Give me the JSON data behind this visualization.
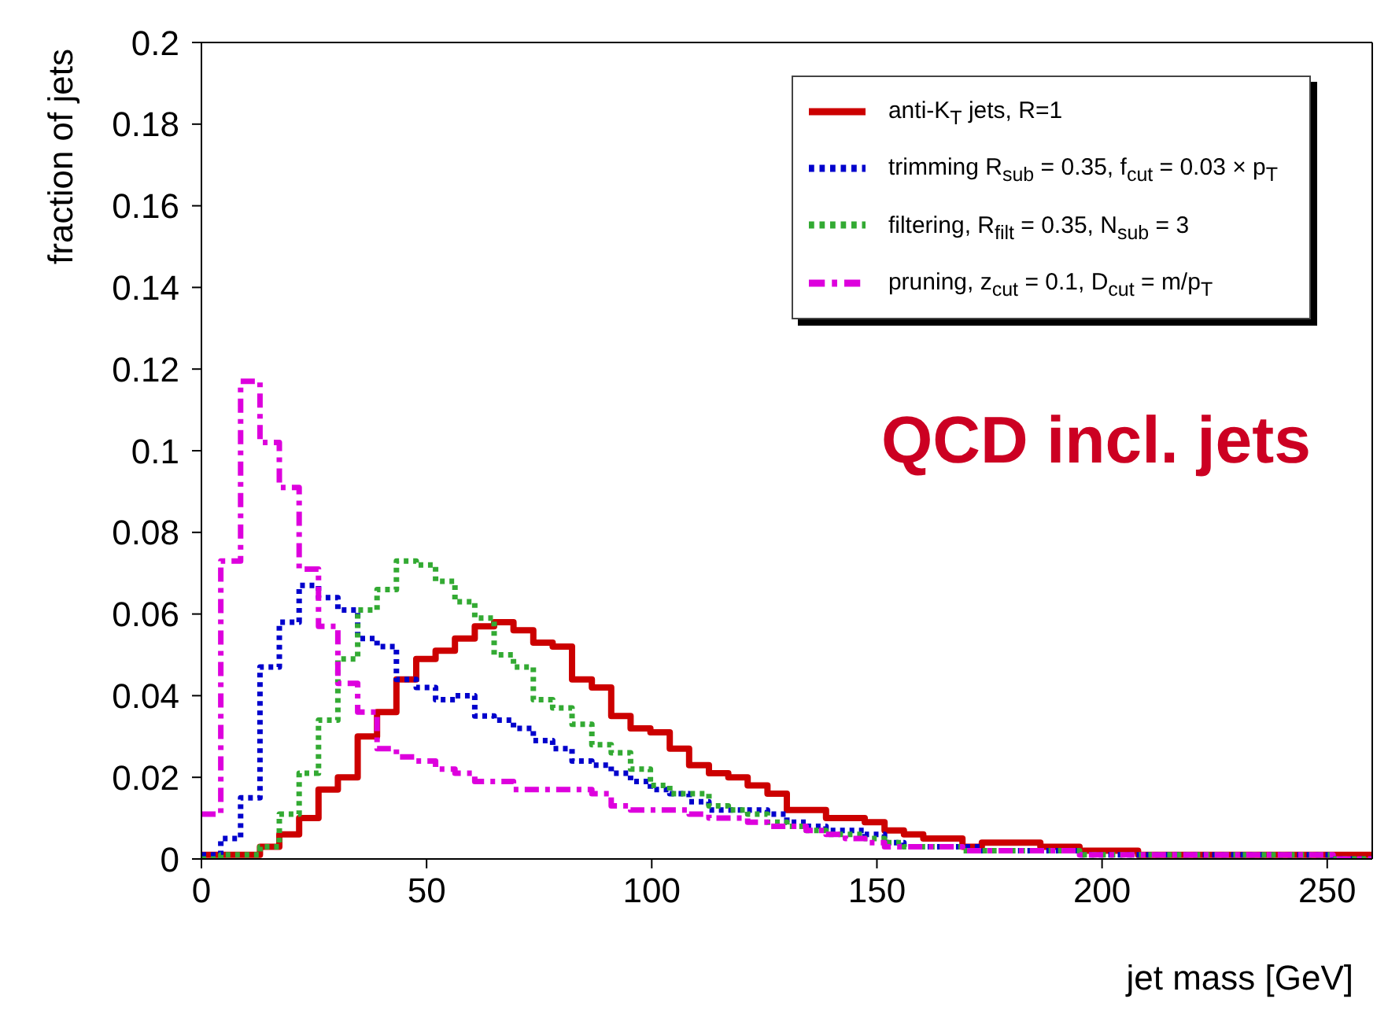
{
  "chart_data": {
    "type": "histogram",
    "xlabel": "jet mass [GeV]",
    "ylabel": "fraction of jets",
    "annotations": [
      "QCD incl. jets"
    ],
    "bins": [
      0,
      4.3,
      8.7,
      13,
      17.3,
      21.7,
      26,
      30.3,
      34.7,
      39,
      43.3,
      47.7,
      52,
      56.3,
      60.7,
      65,
      69.3,
      73.7,
      78,
      82.3,
      86.7,
      91,
      95.3,
      99.7,
      104,
      108.3,
      112.7,
      117,
      121.3,
      125.7,
      130,
      134.3,
      138.7,
      143,
      147.3,
      151.7,
      156,
      160.3,
      164.7,
      169,
      173.3,
      177.7,
      182,
      186.3,
      190.7,
      195,
      199.3,
      203.7,
      208,
      212.3,
      216.7,
      221,
      225.3,
      229.7,
      234,
      238.3,
      242.7,
      247,
      251.3,
      255.7,
      260
    ],
    "series": [
      {
        "name": "anti-K$_{T}$ jets, R=1",
        "color": "#cc0000",
        "line_style": "solid",
        "values": [
          0.001,
          0.001,
          0.001,
          0.003,
          0.006,
          0.01,
          0.017,
          0.02,
          0.03,
          0.036,
          0.044,
          0.049,
          0.051,
          0.054,
          0.057,
          0.058,
          0.056,
          0.053,
          0.052,
          0.044,
          0.042,
          0.035,
          0.032,
          0.031,
          0.027,
          0.023,
          0.021,
          0.02,
          0.018,
          0.016,
          0.012,
          0.012,
          0.01,
          0.01,
          0.009,
          0.007,
          0.006,
          0.005,
          0.005,
          0.003,
          0.004,
          0.004,
          0.004,
          0.003,
          0.003,
          0.002,
          0.002,
          0.002,
          0.001,
          0.001,
          0.001,
          0.001,
          0.001,
          0.001,
          0.001,
          0.001,
          0.001,
          0.001,
          0.001,
          0.001
        ]
      },
      {
        "name": "trimming R$_{sub}$ = 0.35, f$_{cut}$ = 0.03 × p$_{T}$",
        "color": "#0000cc",
        "line_style": "dotted",
        "values": [
          0.001,
          0.005,
          0.015,
          0.047,
          0.058,
          0.067,
          0.064,
          0.061,
          0.054,
          0.052,
          0.044,
          0.042,
          0.039,
          0.04,
          0.035,
          0.034,
          0.032,
          0.029,
          0.027,
          0.024,
          0.023,
          0.021,
          0.019,
          0.017,
          0.016,
          0.014,
          0.012,
          0.012,
          0.012,
          0.011,
          0.009,
          0.008,
          0.007,
          0.007,
          0.006,
          0.004,
          0.003,
          0.003,
          0.003,
          0.003,
          0.002,
          0.002,
          0.002,
          0.002,
          0.002,
          0.001,
          0.001,
          0.001,
          0.001,
          0.001,
          0.001,
          0.001,
          0.001,
          0.001,
          0.001,
          0.001,
          0.001,
          0.001,
          0.0,
          0.0
        ]
      },
      {
        "name": "filtering, R$_{filt}$ = 0.35, N$_{sub}$ = 3",
        "color": "#33aa33",
        "line_style": "dotted",
        "values": [
          0.0,
          0.001,
          0.001,
          0.003,
          0.011,
          0.021,
          0.034,
          0.049,
          0.061,
          0.066,
          0.073,
          0.072,
          0.068,
          0.063,
          0.059,
          0.05,
          0.047,
          0.039,
          0.037,
          0.033,
          0.028,
          0.026,
          0.022,
          0.018,
          0.016,
          0.016,
          0.013,
          0.012,
          0.011,
          0.009,
          0.008,
          0.007,
          0.006,
          0.006,
          0.005,
          0.004,
          0.003,
          0.003,
          0.003,
          0.002,
          0.002,
          0.002,
          0.002,
          0.002,
          0.002,
          0.001,
          0.001,
          0.001,
          0.001,
          0.001,
          0.001,
          0.001,
          0.001,
          0.001,
          0.001,
          0.001,
          0.001,
          0.001,
          0.0,
          0.0
        ]
      },
      {
        "name": "pruning, z$_{cut}$ = 0.1, D$_{cut}$ = m/p$_{T}$",
        "color": "#dd00dd",
        "line_style": "dashed",
        "values": [
          0.011,
          0.073,
          0.117,
          0.102,
          0.091,
          0.071,
          0.057,
          0.043,
          0.036,
          0.027,
          0.025,
          0.024,
          0.022,
          0.021,
          0.019,
          0.019,
          0.017,
          0.017,
          0.017,
          0.017,
          0.016,
          0.013,
          0.012,
          0.012,
          0.012,
          0.011,
          0.01,
          0.01,
          0.009,
          0.008,
          0.008,
          0.007,
          0.006,
          0.005,
          0.004,
          0.003,
          0.003,
          0.003,
          0.003,
          0.002,
          0.002,
          0.002,
          0.002,
          0.002,
          0.002,
          0.001,
          0.001,
          0.001,
          0.001,
          0.001,
          0.001,
          0.001,
          0.001,
          0.001,
          0.001,
          0.001,
          0.001,
          0.001,
          0.0,
          0.0
        ]
      }
    ],
    "xlim": [
      0,
      260
    ],
    "xticks": [
      0,
      50,
      100,
      150,
      200,
      250
    ],
    "ylim": [
      0,
      0.2
    ],
    "yticks": [
      0,
      0.02,
      0.04,
      0.06,
      0.08,
      0.1,
      0.12,
      0.14,
      0.16,
      0.18,
      0.2
    ],
    "legend": "top right"
  }
}
